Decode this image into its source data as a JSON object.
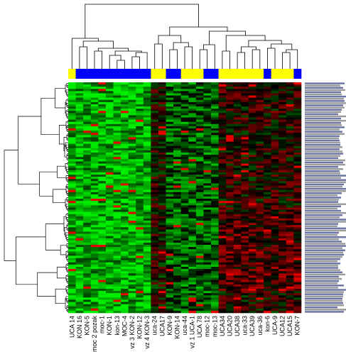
{
  "chart_data": {
    "type": "heatmap",
    "title": "",
    "xlabel": "",
    "ylabel": "",
    "columns": [
      "UCA 14",
      "KON 16",
      "KON-5",
      "moc 2 pozak",
      "moc-1",
      "KON-1",
      "kon-13",
      "MOC-4",
      "vz 3 KON-2",
      "KON-12",
      "vz 4 KON-3",
      "uca-24",
      "UCA17",
      "KON-9",
      "KON-14",
      "uca-44",
      "vz 1 UCA-1",
      "UCA 78",
      "moc-12",
      "moc-13",
      "UCA34",
      "UCA20",
      "UCA38",
      "uca-33",
      "UCA39",
      "uca-36",
      "kon-6",
      "UCA-9",
      "UCA12",
      "UCA15",
      "KON-7"
    ],
    "column_groups": [
      "yellow",
      "blue",
      "blue",
      "blue",
      "blue",
      "blue",
      "blue",
      "blue",
      "blue",
      "blue",
      "blue",
      "yellow",
      "yellow",
      "blue",
      "blue",
      "yellow",
      "yellow",
      "yellow",
      "blue",
      "blue",
      "yellow",
      "yellow",
      "yellow",
      "yellow",
      "yellow",
      "yellow",
      "blue",
      "yellow",
      "yellow",
      "yellow",
      "blue"
    ],
    "group_colors": {
      "yellow": "#ffff00",
      "blue": "#0000ff"
    },
    "row_count": 105,
    "row_labels_legible": false,
    "color_scale": {
      "low": "#00ee00",
      "mid": "#000000",
      "high": "#ff0000"
    },
    "column_dendrogram": true,
    "row_dendrogram": true,
    "legend": "none"
  }
}
